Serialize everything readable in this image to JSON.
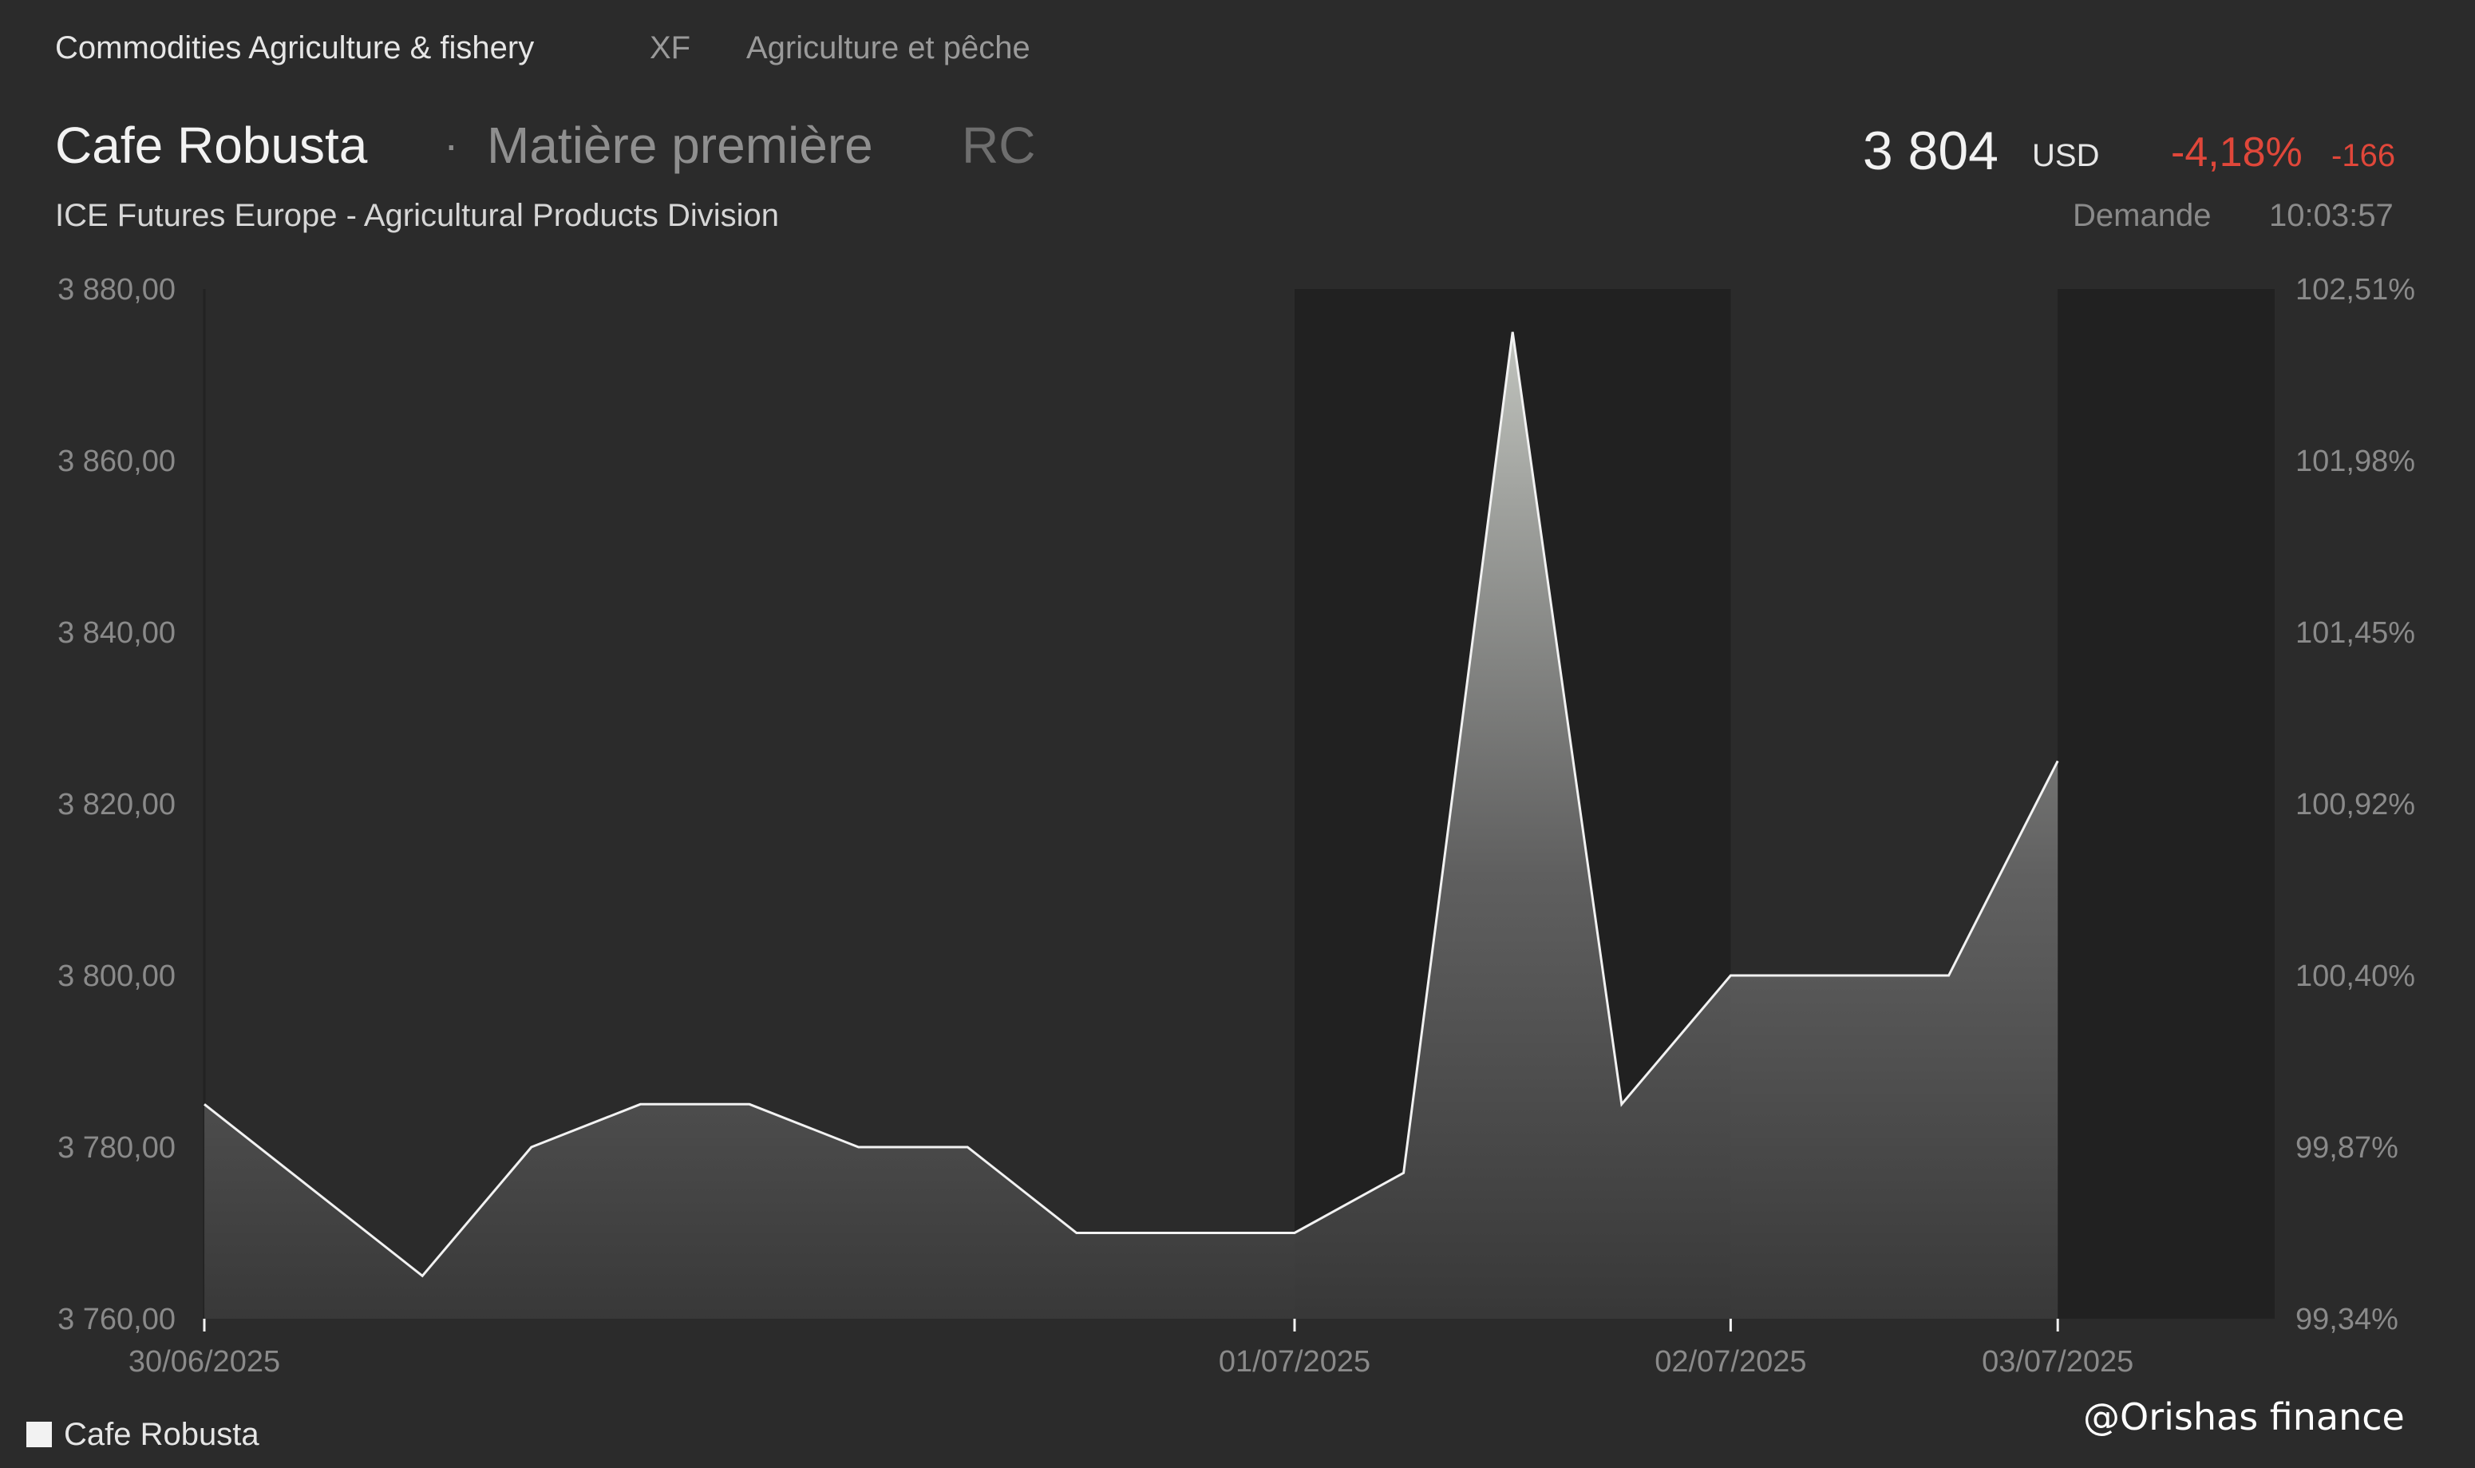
{
  "header": {
    "category": "Commodities Agriculture & fishery",
    "code": "XF",
    "category_fr": "Agriculture et pêche",
    "title": "Cafe Robusta",
    "separator": "·",
    "subtype": "Matière première",
    "ticker": "RC",
    "exchange": "ICE Futures Europe - Agricultural Products Division",
    "price": "3 804",
    "currency": "USD",
    "change_pct": "-4,18%",
    "change_abs": "-166",
    "quote_type": "Demande",
    "time": "10:03:57"
  },
  "colors": {
    "background": "#2b2b2b",
    "night_band": "#212121",
    "line": "#f2f2f2",
    "negative": "#e0473a"
  },
  "legend": {
    "label": "Cafe Robusta"
  },
  "watermark": "@Orishas finance",
  "chart_data": {
    "type": "area",
    "series": [
      {
        "name": "Cafe Robusta",
        "x": [
          0,
          1,
          2,
          3,
          4,
          5,
          6,
          7,
          8,
          9,
          10,
          11,
          12,
          13,
          14,
          15,
          16,
          17
        ],
        "values": [
          3785,
          3775,
          3765,
          3780,
          3785,
          3785,
          3780,
          3780,
          3770,
          3770,
          3770,
          3777,
          3875,
          3785,
          3800,
          3800,
          3800,
          3825
        ]
      }
    ],
    "x_range": [
      0,
      19
    ],
    "x_ticks": [
      {
        "x": 0,
        "label": "30/06/2025"
      },
      {
        "x": 10,
        "label": "01/07/2025"
      },
      {
        "x": 14,
        "label": "02/07/2025"
      },
      {
        "x": 17,
        "label": "03/07/2025"
      }
    ],
    "shaded_ranges": [
      [
        10,
        14
      ],
      [
        17,
        19
      ]
    ],
    "ylim": [
      3760,
      3880
    ],
    "y_ticks": [
      "3 760,00",
      "3 780,00",
      "3 800,00",
      "3 820,00",
      "3 840,00",
      "3 860,00",
      "3 880,00"
    ],
    "y_tick_values": [
      3760,
      3780,
      3800,
      3820,
      3840,
      3860,
      3880
    ],
    "y2_ticks": [
      "99,34%",
      "99,87%",
      "100,40%",
      "100,92%",
      "101,45%",
      "101,98%",
      "102,51%"
    ]
  }
}
